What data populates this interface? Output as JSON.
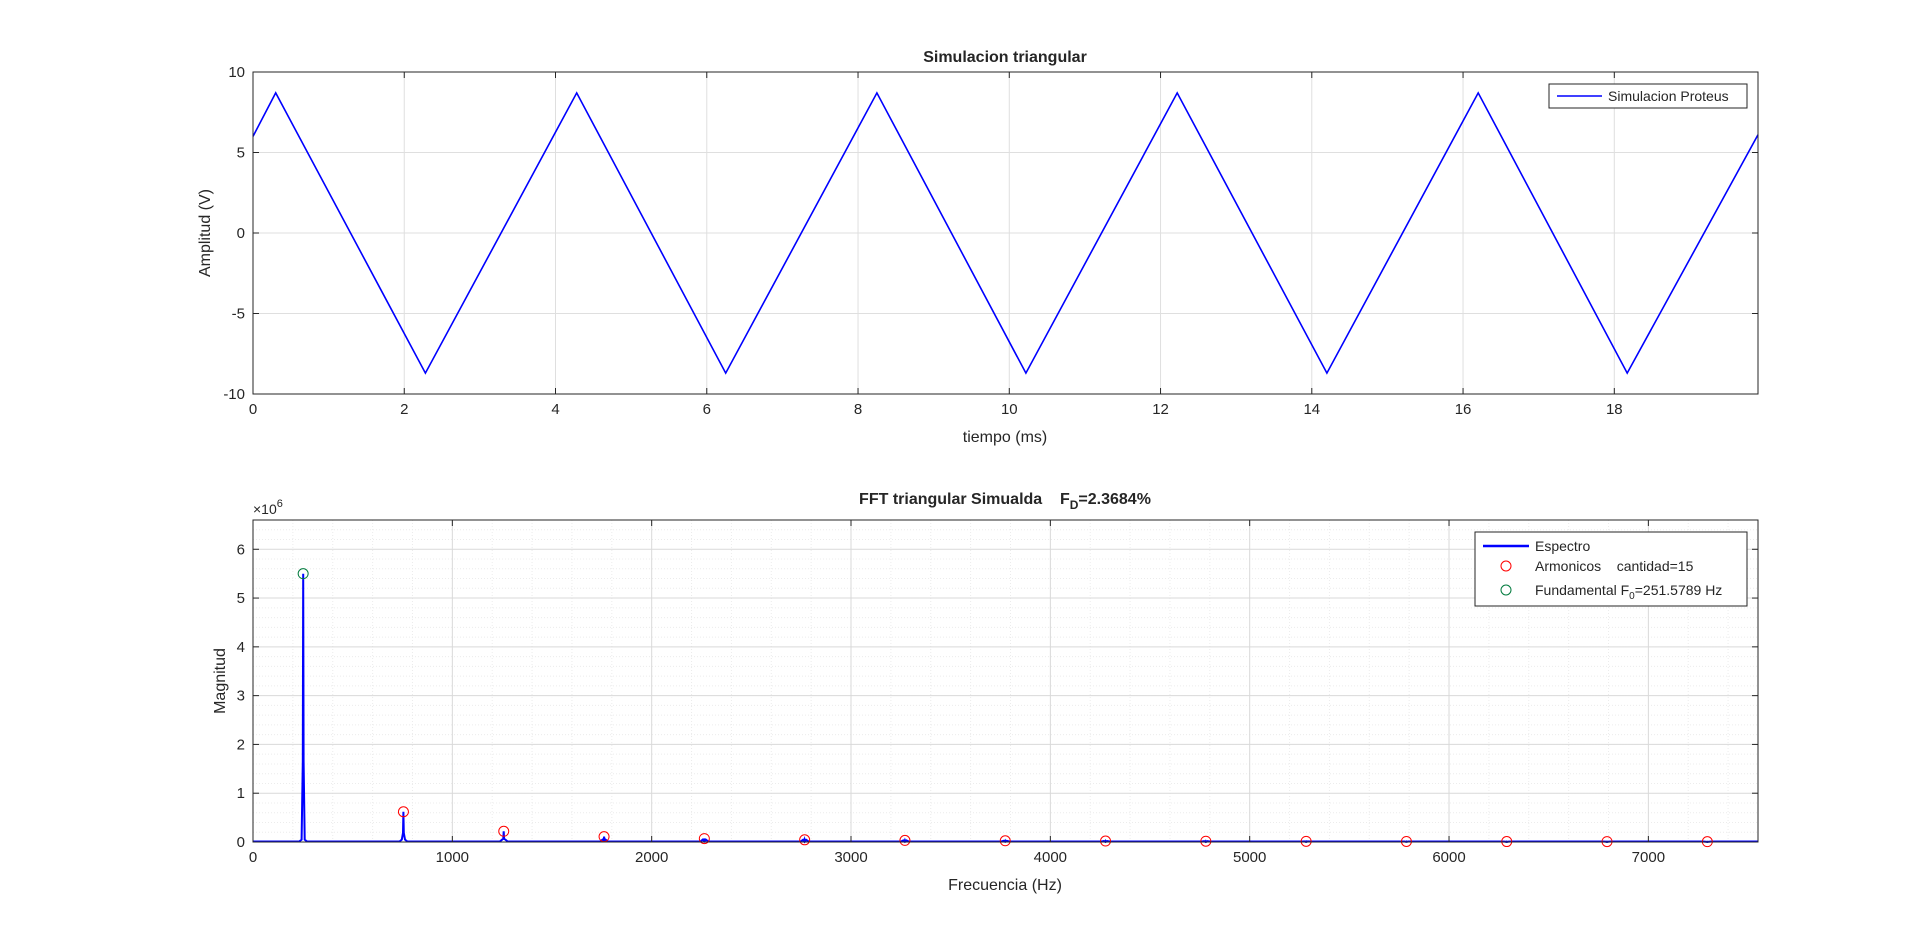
{
  "chart_data": [
    {
      "type": "line",
      "title": "Simulacion triangular",
      "xlabel": "tiempo (ms)",
      "ylabel": "Amplitud (V)",
      "xlim": [
        0,
        19.9
      ],
      "ylim": [
        -10,
        10
      ],
      "xticks": [
        0,
        2,
        4,
        6,
        8,
        10,
        12,
        14,
        16,
        18
      ],
      "yticks": [
        -10,
        -5,
        0,
        5,
        10
      ],
      "grid": true,
      "legend_position": "top-right",
      "line_color": "#0000ff",
      "series": [
        {
          "name": "Simulacion Proteus",
          "x": [
            0,
            0.3,
            2.28,
            4.28,
            6.25,
            8.25,
            10.22,
            12.22,
            14.2,
            16.2,
            18.17,
            19.9
          ],
          "y": [
            6.0,
            8.7,
            -8.7,
            8.7,
            -8.7,
            8.7,
            -8.7,
            8.7,
            -8.7,
            8.7,
            -8.7,
            6.1
          ]
        }
      ]
    },
    {
      "type": "line",
      "title": "FFT triangular Simualda",
      "title_fd_symbol": "F",
      "title_fd_sub": "D",
      "title_fd_value": "=2.3684%",
      "xlabel": "Frecuencia (Hz)",
      "ylabel": "Magnitud",
      "y_exponent_base": "×10",
      "y_exponent_power": "6",
      "xlim": [
        0,
        7550
      ],
      "ylim": [
        0,
        6.6
      ],
      "xticks": [
        0,
        1000,
        2000,
        3000,
        4000,
        5000,
        6000,
        7000
      ],
      "yticks": [
        0,
        1,
        2,
        3,
        4,
        5,
        6
      ],
      "grid": true,
      "minor_grid": true,
      "legend_position": "top-right",
      "spectrum_color": "#0000ff",
      "harmonic_color": "#ff0000",
      "fundamental_color": "#007a3d",
      "legend": {
        "spectrum": "Espectro",
        "harmonics": "Armonicos    cantidad=15",
        "fundamental_prefix": "Fundamental F",
        "fundamental_sub": "0",
        "fundamental_suffix": "=251.5789 Hz"
      },
      "spectrum_peaks": {
        "x": [
          251.6,
          754.7,
          1257.9,
          1761.1,
          2264.2,
          2767.4,
          3270.5,
          3773.7,
          4276.8,
          4780.0,
          5283.2,
          5786.3,
          6289.5,
          6792.6,
          7295.8
        ],
        "y": [
          5.5,
          0.62,
          0.22,
          0.11,
          0.07,
          0.045,
          0.033,
          0.025,
          0.02,
          0.016,
          0.013,
          0.011,
          0.009,
          0.008,
          0.007
        ]
      },
      "harmonics": {
        "x": [
          754.7,
          1257.9,
          1761.1,
          2264.2,
          2767.4,
          3270.5,
          3773.7,
          4276.8,
          4780.0,
          5283.2,
          5786.3,
          6289.5,
          6792.6,
          7295.8
        ],
        "y": [
          0.62,
          0.22,
          0.11,
          0.07,
          0.045,
          0.033,
          0.025,
          0.02,
          0.016,
          0.013,
          0.011,
          0.009,
          0.008,
          0.007
        ]
      },
      "fundamental": {
        "x": 251.6,
        "y": 5.5
      }
    }
  ]
}
